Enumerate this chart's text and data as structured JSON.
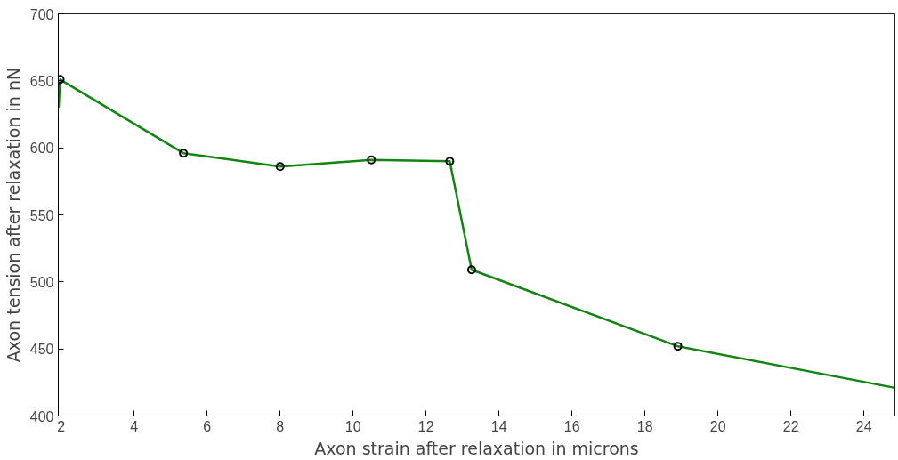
{
  "chart_data": {
    "type": "line",
    "xlabel": "Axon strain after relaxation in microns",
    "ylabel": "Axon tension after relaxation in nN",
    "xlim": [
      1.92,
      24.85
    ],
    "ylim": [
      400,
      700
    ],
    "xticks": [
      2,
      4,
      6,
      8,
      10,
      12,
      14,
      16,
      18,
      20,
      22,
      24
    ],
    "yticks": [
      400,
      450,
      500,
      550,
      600,
      650,
      700
    ],
    "grid": false,
    "series": [
      {
        "color": "#128412",
        "marker": "none",
        "x": [
          1.93,
          1.97,
          5.35,
          8.0,
          10.5,
          12.65,
          13.25,
          18.9,
          24.85
        ],
        "values": [
          630,
          651,
          596,
          586,
          591,
          590,
          509,
          452,
          421
        ]
      },
      {
        "type": "scatter",
        "color": "#000000",
        "marker": "circle",
        "x": [
          1.97,
          5.35,
          8.0,
          10.5,
          12.65,
          13.25,
          18.9
        ],
        "values": [
          651,
          596,
          586,
          591,
          590,
          509,
          452
        ]
      }
    ]
  }
}
